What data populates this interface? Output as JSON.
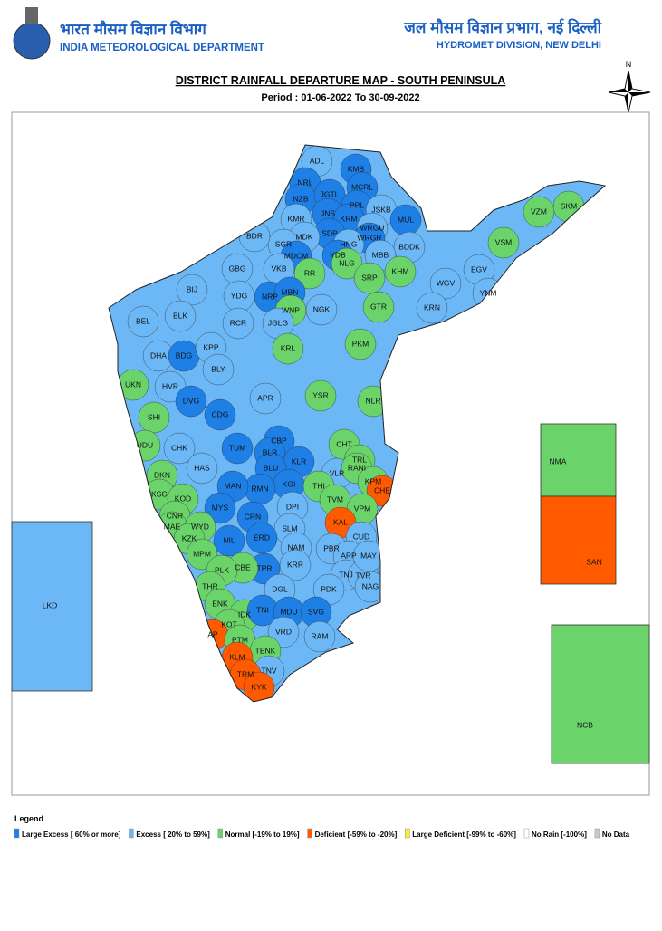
{
  "header": {
    "org_hindi": "भारत मौसम विज्ञान विभाग",
    "org_english": "INDIA METEOROLOGICAL DEPARTMENT",
    "division_hindi": "जल मौसम विज्ञान प्रभाग, नई दिल्ली",
    "division_english": "HYDROMET DIVISION, NEW DELHI"
  },
  "title": "DISTRICT RAINFALL DEPARTURE MAP - SOUTH PENINSULA",
  "period": "Period : 01-06-2022 To 30-09-2022",
  "compass": "N",
  "districts": [
    {
      "label": "ADL",
      "color": "#6cb7f5"
    },
    {
      "label": "KMB",
      "color": "#1e7fe6"
    },
    {
      "label": "NRL",
      "color": "#1e7fe6"
    },
    {
      "label": "MCRL",
      "color": "#1e7fe6"
    },
    {
      "label": "NZB",
      "color": "#1e7fe6"
    },
    {
      "label": "JGTL",
      "color": "#1e7fe6"
    },
    {
      "label": "PPL",
      "color": "#1e7fe6"
    },
    {
      "label": "JNS",
      "color": "#1e7fe6"
    },
    {
      "label": "KMR",
      "color": "#6cb7f5"
    },
    {
      "label": "JSKB",
      "color": "#6cb7f5"
    },
    {
      "label": "MUL",
      "color": "#1e7fe6"
    },
    {
      "label": "KRM",
      "color": "#1e7fe6"
    },
    {
      "label": "SDP",
      "color": "#1e7fe6"
    },
    {
      "label": "WRGU",
      "color": "#6cb7f5"
    },
    {
      "label": "WRGR",
      "color": "#1e7fe6"
    },
    {
      "label": "MDK",
      "color": "#6cb7f5"
    },
    {
      "label": "SGR",
      "color": "#6cb7f5"
    },
    {
      "label": "HNG",
      "color": "#6cb7f5"
    },
    {
      "label": "BDR",
      "color": "#6cb7f5"
    },
    {
      "label": "BDDK",
      "color": "#6cb7f5"
    },
    {
      "label": "MDCM",
      "color": "#1e7fe6"
    },
    {
      "label": "YDB",
      "color": "#1e7fe6"
    },
    {
      "label": "MBB",
      "color": "#6cb7f5"
    },
    {
      "label": "RR",
      "color": "#6ad46a"
    },
    {
      "label": "VKB",
      "color": "#6cb7f5"
    },
    {
      "label": "NRP",
      "color": "#1e7fe6"
    },
    {
      "label": "MBN",
      "color": "#1e7fe6"
    },
    {
      "label": "WNP",
      "color": "#6ad46a"
    },
    {
      "label": "NGK",
      "color": "#6cb7f5"
    },
    {
      "label": "NLG",
      "color": "#6ad46a"
    },
    {
      "label": "SRP",
      "color": "#6ad46a"
    },
    {
      "label": "KHM",
      "color": "#6ad46a"
    },
    {
      "label": "GBG",
      "color": "#6cb7f5"
    },
    {
      "label": "BIJ",
      "color": "#6cb7f5"
    },
    {
      "label": "YDG",
      "color": "#6cb7f5"
    },
    {
      "label": "BEL",
      "color": "#6cb7f5"
    },
    {
      "label": "BLK",
      "color": "#6cb7f5"
    },
    {
      "label": "RCR",
      "color": "#6cb7f5"
    },
    {
      "label": "JGLG",
      "color": "#6cb7f5"
    },
    {
      "label": "GTR",
      "color": "#6ad46a"
    },
    {
      "label": "WGV",
      "color": "#6cb7f5"
    },
    {
      "label": "EGV",
      "color": "#6cb7f5"
    },
    {
      "label": "VSM",
      "color": "#6ad46a"
    },
    {
      "label": "VZM",
      "color": "#6ad46a"
    },
    {
      "label": "SKM",
      "color": "#6ad46a"
    },
    {
      "label": "YNM",
      "color": "#6cb7f5"
    },
    {
      "label": "KRN",
      "color": "#6cb7f5"
    },
    {
      "label": "KRL",
      "color": "#6ad46a"
    },
    {
      "label": "PKM",
      "color": "#6ad46a"
    },
    {
      "label": "DHA",
      "color": "#6cb7f5"
    },
    {
      "label": "BDG",
      "color": "#1e7fe6"
    },
    {
      "label": "KPP",
      "color": "#6cb7f5"
    },
    {
      "label": "BLY",
      "color": "#6cb7f5"
    },
    {
      "label": "UKN",
      "color": "#6ad46a"
    },
    {
      "label": "HVR",
      "color": "#6cb7f5"
    },
    {
      "label": "NLR",
      "color": "#6ad46a"
    },
    {
      "label": "APR",
      "color": "#6cb7f5"
    },
    {
      "label": "DVG",
      "color": "#1e7fe6"
    },
    {
      "label": "SHI",
      "color": "#6ad46a"
    },
    {
      "label": "CDG",
      "color": "#1e7fe6"
    },
    {
      "label": "YSR",
      "color": "#6ad46a"
    },
    {
      "label": "UDU",
      "color": "#6ad46a"
    },
    {
      "label": "CHK",
      "color": "#6cb7f5"
    },
    {
      "label": "CHT",
      "color": "#6ad46a"
    },
    {
      "label": "CBP",
      "color": "#1e7fe6"
    },
    {
      "label": "BLR",
      "color": "#1e7fe6"
    },
    {
      "label": "TUM",
      "color": "#1e7fe6"
    },
    {
      "label": "KLR",
      "color": "#1e7fe6"
    },
    {
      "label": "BLU",
      "color": "#1e7fe6"
    },
    {
      "label": "HAS",
      "color": "#6cb7f5"
    },
    {
      "label": "DKN",
      "color": "#6ad46a"
    },
    {
      "label": "KGI",
      "color": "#1e7fe6"
    },
    {
      "label": "RMN",
      "color": "#1e7fe6"
    },
    {
      "label": "TRL",
      "color": "#6ad46a"
    },
    {
      "label": "VLR",
      "color": "#6cb7f5"
    },
    {
      "label": "RANI",
      "color": "#6ad46a"
    },
    {
      "label": "KPM",
      "color": "#6ad46a"
    },
    {
      "label": "CHE",
      "color": "#ff5a00"
    },
    {
      "label": "THI",
      "color": "#6ad46a"
    },
    {
      "label": "MAN",
      "color": "#1e7fe6"
    },
    {
      "label": "KSG",
      "color": "#6ad46a"
    },
    {
      "label": "KOD",
      "color": "#6ad46a"
    },
    {
      "label": "MYS",
      "color": "#1e7fe6"
    },
    {
      "label": "TVM",
      "color": "#6ad46a"
    },
    {
      "label": "VPM",
      "color": "#6ad46a"
    },
    {
      "label": "DPI",
      "color": "#6cb7f5"
    },
    {
      "label": "CNR",
      "color": "#6ad46a"
    },
    {
      "label": "CRN",
      "color": "#1e7fe6"
    },
    {
      "label": "KAL",
      "color": "#ff5a00"
    },
    {
      "label": "MAE",
      "color": "#6ad46a"
    },
    {
      "label": "WYD",
      "color": "#6ad46a"
    },
    {
      "label": "SLM",
      "color": "#6cb7f5"
    },
    {
      "label": "CUD",
      "color": "#6cb7f5"
    },
    {
      "label": "KZK",
      "color": "#6ad46a"
    },
    {
      "label": "NIL",
      "color": "#1e7fe6"
    },
    {
      "label": "ERD",
      "color": "#1e7fe6"
    },
    {
      "label": "NAM",
      "color": "#6cb7f5"
    },
    {
      "label": "PBR",
      "color": "#6cb7f5"
    },
    {
      "label": "ARP",
      "color": "#6cb7f5"
    },
    {
      "label": "MPM",
      "color": "#6ad46a"
    },
    {
      "label": "TPR",
      "color": "#1e7fe6"
    },
    {
      "label": "CBE",
      "color": "#6ad46a"
    },
    {
      "label": "KRR",
      "color": "#6cb7f5"
    },
    {
      "label": "TNJ",
      "color": "#6cb7f5"
    },
    {
      "label": "TVR",
      "color": "#6cb7f5"
    },
    {
      "label": "PLK",
      "color": "#6ad46a"
    },
    {
      "label": "NAG",
      "color": "#6cb7f5"
    },
    {
      "label": "MAY",
      "color": "#6cb7f5"
    },
    {
      "label": "THR",
      "color": "#6ad46a"
    },
    {
      "label": "DGL",
      "color": "#6cb7f5"
    },
    {
      "label": "PDK",
      "color": "#6cb7f5"
    },
    {
      "label": "ENK",
      "color": "#6ad46a"
    },
    {
      "label": "IDK",
      "color": "#6ad46a"
    },
    {
      "label": "TNI",
      "color": "#1e7fe6"
    },
    {
      "label": "MDU",
      "color": "#1e7fe6"
    },
    {
      "label": "SVG",
      "color": "#1e7fe6"
    },
    {
      "label": "KOT",
      "color": "#6ad46a"
    },
    {
      "label": "AP",
      "color": "#ff5a00"
    },
    {
      "label": "PTM",
      "color": "#6ad46a"
    },
    {
      "label": "VRD",
      "color": "#6cb7f5"
    },
    {
      "label": "RAM",
      "color": "#6cb7f5"
    },
    {
      "label": "TENK",
      "color": "#6ad46a"
    },
    {
      "label": "KLM",
      "color": "#ff5a00"
    },
    {
      "label": "TNV",
      "color": "#6cb7f5"
    },
    {
      "label": "TRM",
      "color": "#ff5a00"
    },
    {
      "label": "KYK",
      "color": "#ff5a00"
    }
  ],
  "insets": [
    {
      "label": "LKD",
      "color": "#6cb7f5"
    },
    {
      "label": "NMA",
      "color": "#6ad46a"
    },
    {
      "label": "SAN",
      "color": "#ff5a00"
    },
    {
      "label": "NCB",
      "color": "#6ad46a"
    }
  ],
  "legend": {
    "title": "Legend",
    "items": [
      {
        "label": "Large Excess [ 60% or more]",
        "color": "#1e7fe6"
      },
      {
        "label": "Excess [ 20% to 59%]",
        "color": "#6cb7f5"
      },
      {
        "label": "Normal [-19% to 19%]",
        "color": "#6ad46a"
      },
      {
        "label": "Deficient [-59% to -20%]",
        "color": "#ff5a00"
      },
      {
        "label": "Large Deficient [-99% to -60%]",
        "color": "#ffeb3b"
      },
      {
        "label": "No Rain  [-100%]",
        "color": "#ffffff"
      },
      {
        "label": "No Data",
        "color": "#c8c8c8"
      }
    ]
  }
}
